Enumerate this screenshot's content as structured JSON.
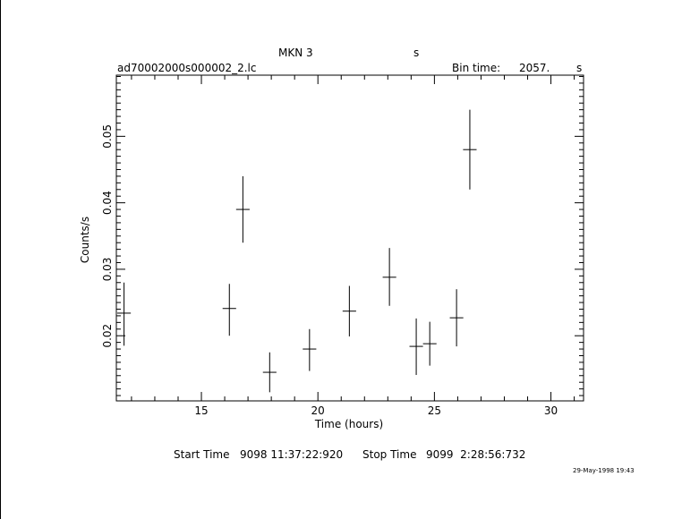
{
  "header": {
    "object": "MKN 3",
    "unit_top": "s",
    "file": "ad70002000s000002_2.lc",
    "bin_label": "Bin time:",
    "bin_value": "2057.",
    "bin_unit": "s"
  },
  "footer": {
    "start_label": "Start Time",
    "start_value": "9098 11:37:22:920",
    "stop_label": "Stop Time",
    "stop_value": "9099  2:28:56:732",
    "stamp": "29-May-1998 19:43"
  },
  "chart_data": {
    "type": "scatter",
    "title": "MKN 3",
    "xlabel": "Time (hours)",
    "ylabel": "Counts/s",
    "xlim": [
      11.35,
      31.4
    ],
    "ylim": [
      0.0102,
      0.0592
    ],
    "xticks": [
      15,
      20,
      25,
      30
    ],
    "xtick_labels": [
      "15",
      "20",
      "25",
      "30"
    ],
    "yticks": [
      0.02,
      0.03,
      0.04,
      0.05
    ],
    "ytick_labels": [
      "0.02",
      "0.03",
      "0.04",
      "0.05"
    ],
    "grid": false,
    "points": [
      {
        "x": 11.68,
        "xerr": 0.29,
        "y": 0.0234,
        "ylo": 0.0185,
        "yhi": 0.028
      },
      {
        "x": 16.2,
        "xerr": 0.29,
        "y": 0.0241,
        "ylo": 0.02,
        "yhi": 0.0278
      },
      {
        "x": 16.78,
        "xerr": 0.29,
        "y": 0.039,
        "ylo": 0.034,
        "yhi": 0.044
      },
      {
        "x": 17.93,
        "xerr": 0.29,
        "y": 0.0145,
        "ylo": 0.0115,
        "yhi": 0.0175
      },
      {
        "x": 19.64,
        "xerr": 0.29,
        "y": 0.018,
        "ylo": 0.0147,
        "yhi": 0.021
      },
      {
        "x": 21.35,
        "xerr": 0.29,
        "y": 0.0237,
        "ylo": 0.0199,
        "yhi": 0.0275
      },
      {
        "x": 23.07,
        "xerr": 0.29,
        "y": 0.0288,
        "ylo": 0.0245,
        "yhi": 0.0332
      },
      {
        "x": 24.22,
        "xerr": 0.29,
        "y": 0.0184,
        "ylo": 0.0141,
        "yhi": 0.0226
      },
      {
        "x": 24.8,
        "xerr": 0.29,
        "y": 0.0188,
        "ylo": 0.0155,
        "yhi": 0.0221
      },
      {
        "x": 25.95,
        "xerr": 0.29,
        "y": 0.0227,
        "ylo": 0.0184,
        "yhi": 0.027
      },
      {
        "x": 26.52,
        "xerr": 0.29,
        "y": 0.048,
        "ylo": 0.042,
        "yhi": 0.054
      }
    ]
  }
}
